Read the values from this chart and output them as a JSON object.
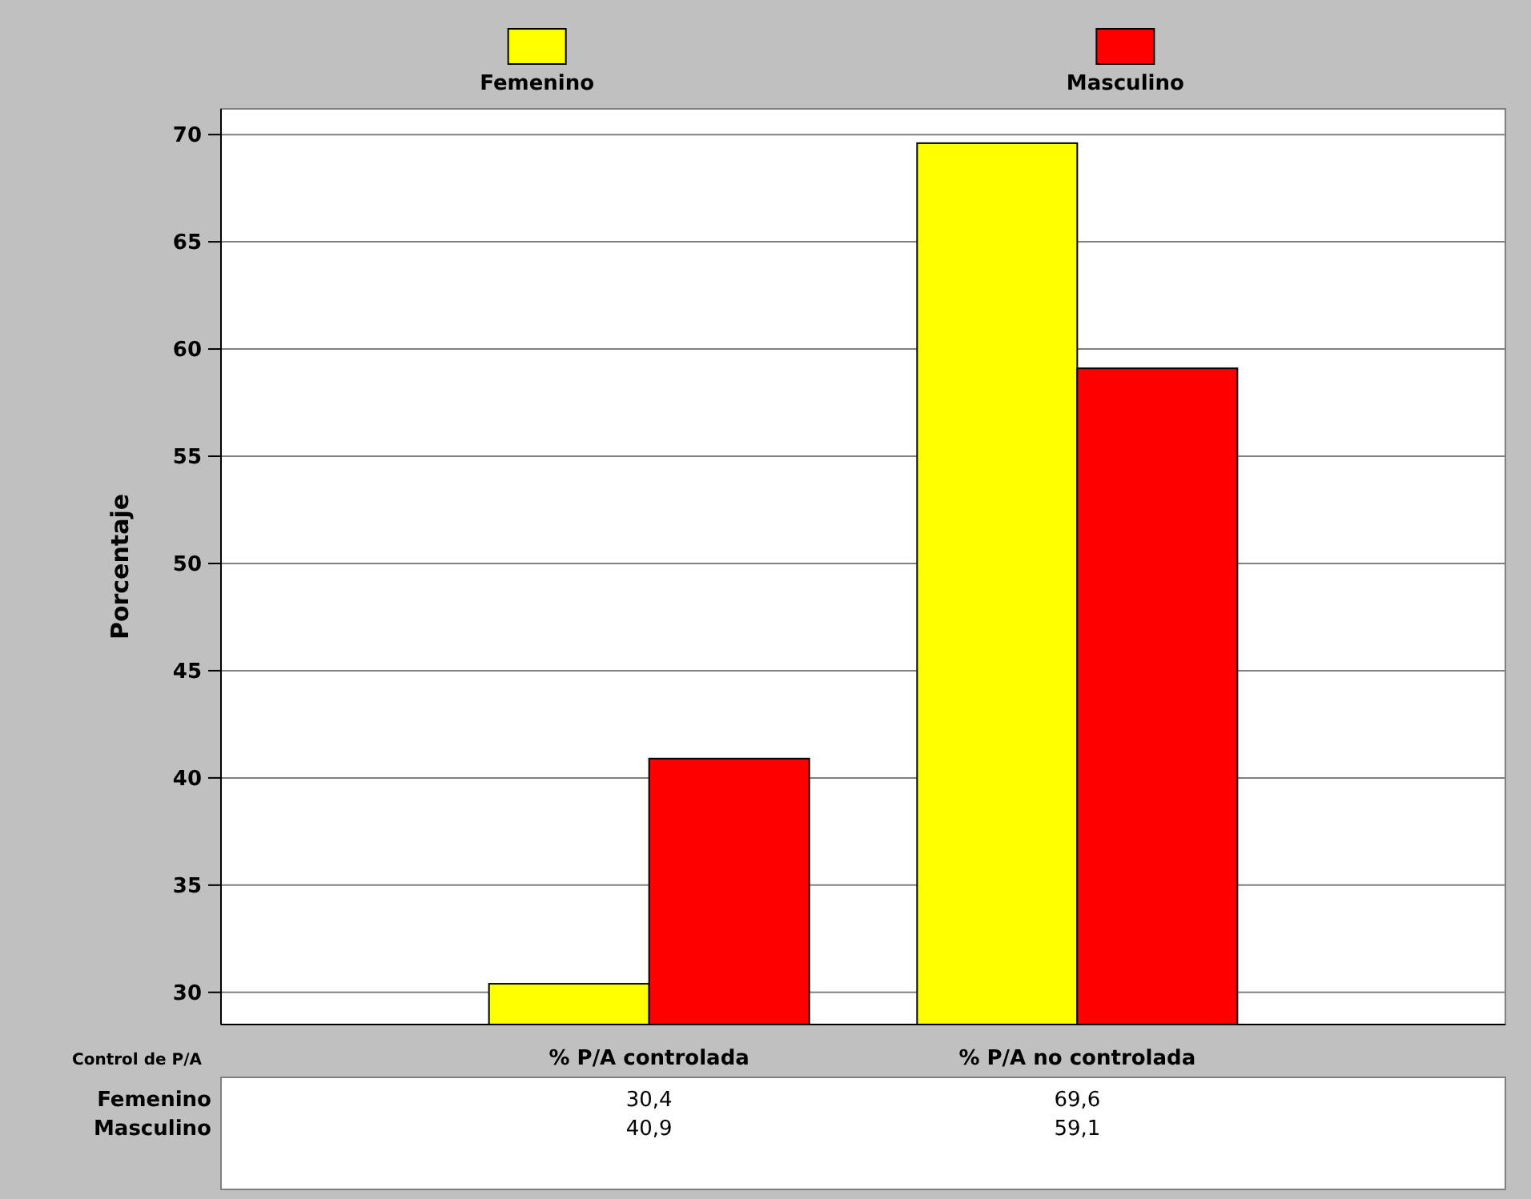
{
  "chart_data": {
    "type": "bar",
    "ylabel": "Porcentaje",
    "xlabel": "Control de P/A",
    "categories": [
      "% P/A controlada",
      "% P/A no controlada"
    ],
    "series": [
      {
        "name": "Femenino",
        "color": "#ffff00",
        "values": [
          30.4,
          69.6
        ],
        "value_labels": [
          "30,4",
          "69,6"
        ]
      },
      {
        "name": "Masculino",
        "color": "#ff0000",
        "values": [
          40.9,
          59.1
        ],
        "value_labels": [
          "40,9",
          "59,1"
        ]
      }
    ],
    "ylim": [
      28.5,
      71.2
    ],
    "yticks": [
      30,
      35,
      40,
      45,
      50,
      55,
      60,
      65,
      70
    ],
    "grid": "y",
    "legend": "top"
  }
}
